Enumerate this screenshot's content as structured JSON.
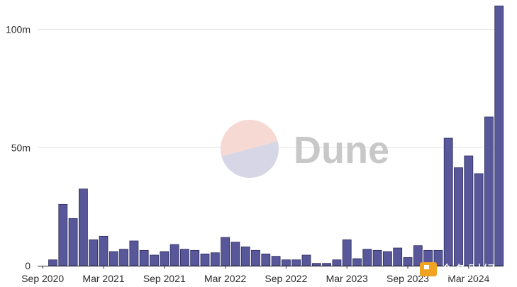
{
  "chart_data": {
    "type": "bar",
    "x_tick_labels": [
      "Sep 2020",
      "Mar 2021",
      "Sep 2021",
      "Mar 2022",
      "Sep 2022",
      "Mar 2023",
      "Sep 2023",
      "Mar 2024"
    ],
    "y_tick_labels": [
      "0",
      "50m",
      "100m"
    ],
    "ylim": [
      0,
      108000000
    ],
    "grid": true,
    "values": [
      2500000,
      26000000,
      20000000,
      32500000,
      11000000,
      12500000,
      6000000,
      7000000,
      10500000,
      6500000,
      4500000,
      6000000,
      9000000,
      7000000,
      6500000,
      5000000,
      5500000,
      12000000,
      10000000,
      8000000,
      6500000,
      5000000,
      4000000,
      2500000,
      2500000,
      4500000,
      1000000,
      1000000,
      2500000,
      11000000,
      3000000,
      7000000,
      6500000,
      6000000,
      7500000,
      3500000,
      8500000,
      6500000,
      6500000,
      54000000,
      41500000,
      46500000,
      39000000,
      63000000,
      110000000
    ],
    "bar_color": "#58579a"
  },
  "watermark": {
    "text": "Dune"
  },
  "badge": {
    "text": "金色财经"
  },
  "colors": {
    "pie_top": "#f6d9d3",
    "pie_bottom": "#d6d6e6",
    "badge": "#f0a321"
  }
}
